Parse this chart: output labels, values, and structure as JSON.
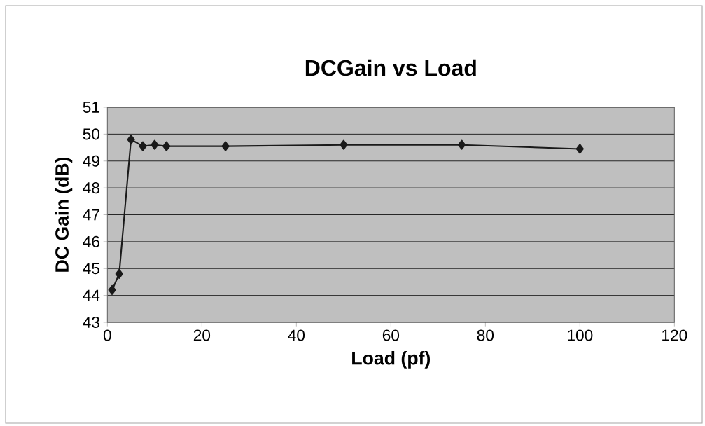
{
  "chart_data": {
    "type": "line",
    "title": "DCGain vs Load",
    "xlabel": "Load (pf)",
    "ylabel": "DC Gain (dB)",
    "x": [
      1,
      2.5,
      5,
      7.5,
      10,
      12.5,
      25,
      50,
      75,
      100
    ],
    "series": [
      {
        "color": "#1a1a1a",
        "values": [
          44.2,
          44.8,
          49.8,
          49.55,
          49.6,
          49.55,
          49.55,
          49.6,
          49.6,
          49.45
        ]
      }
    ],
    "xlim": [
      0,
      120
    ],
    "xticks": [
      0,
      20,
      40,
      60,
      80,
      100,
      120
    ],
    "ylim": [
      43,
      51
    ],
    "yticks": [
      43,
      44,
      45,
      46,
      47,
      48,
      49,
      50,
      51
    ],
    "grid": "y",
    "marker": "diamond",
    "line_style": "solid"
  }
}
